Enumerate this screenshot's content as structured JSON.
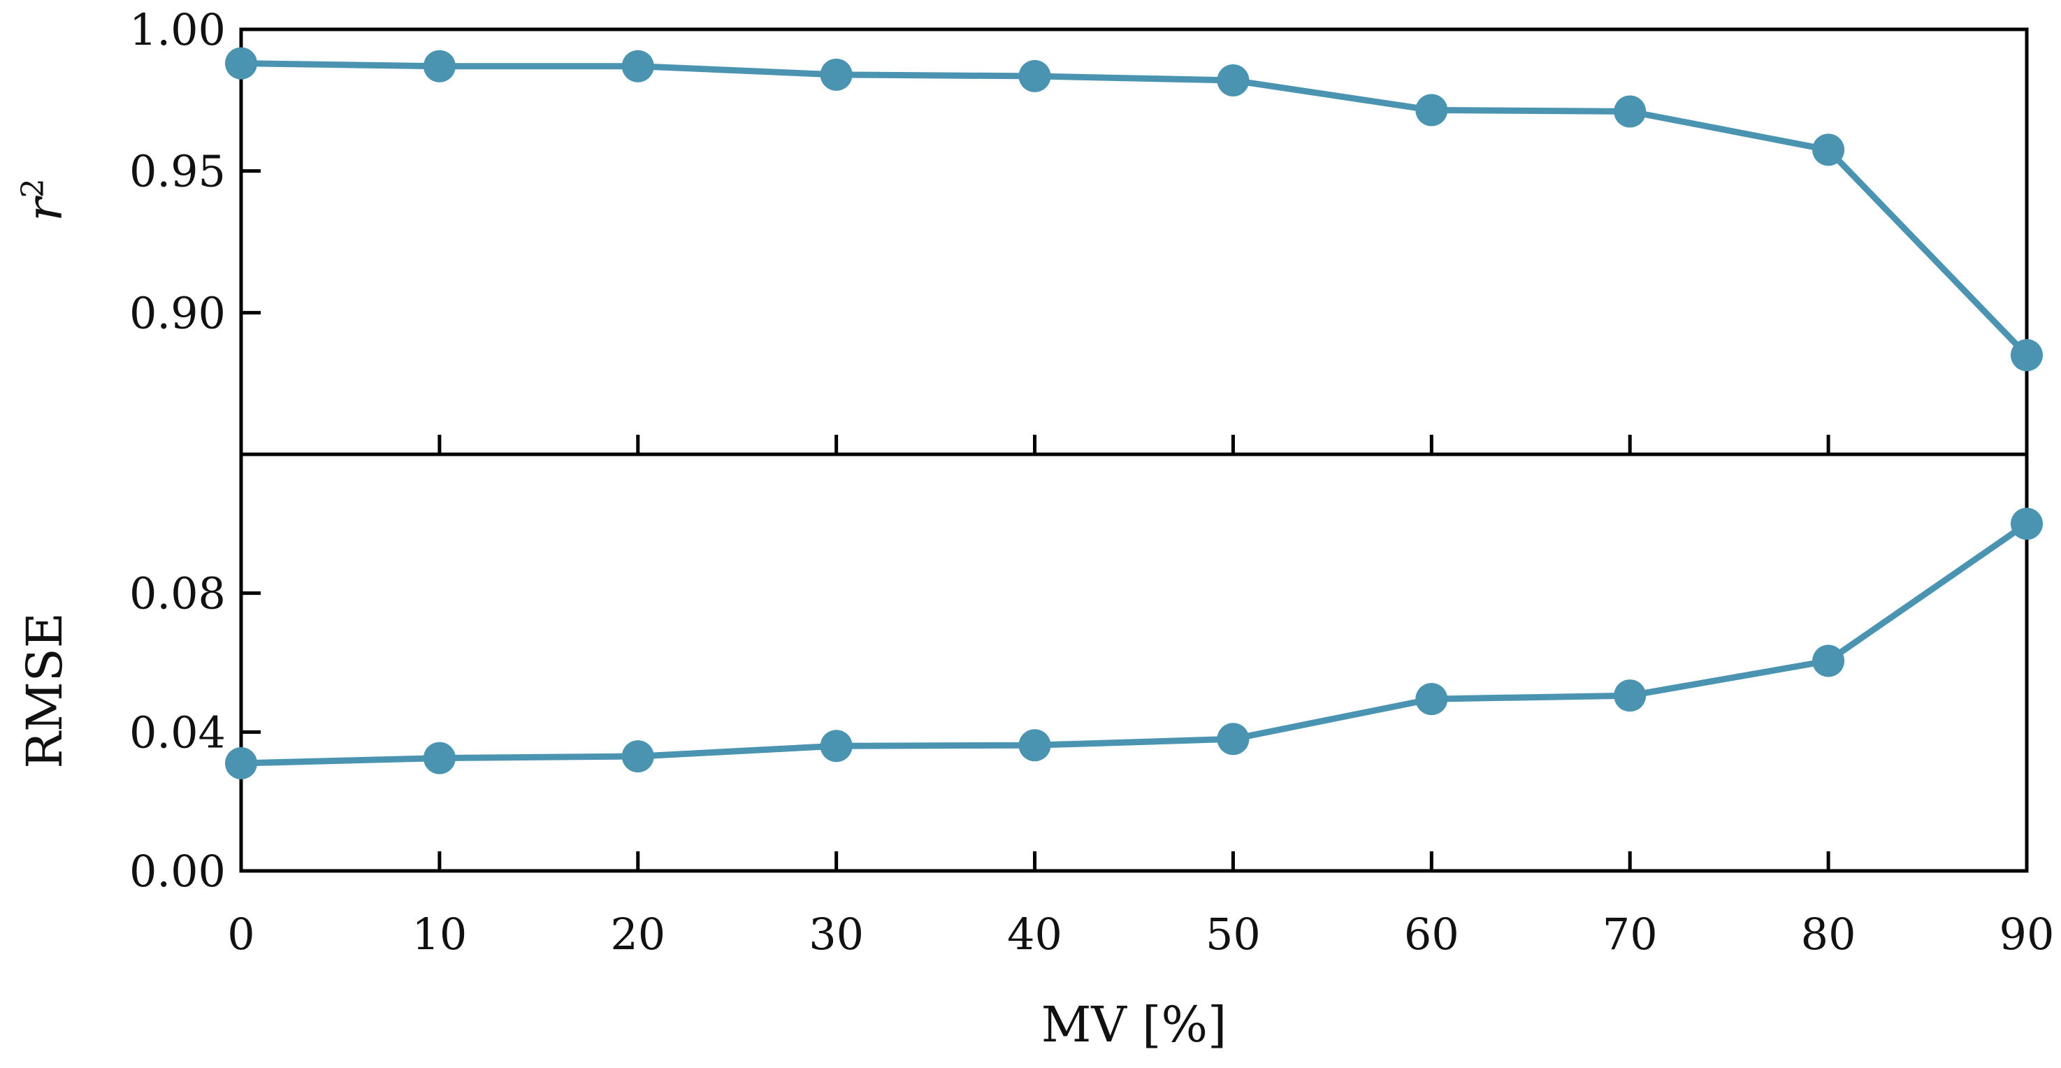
{
  "chart_data": [
    {
      "type": "line",
      "panel": "top",
      "ylabel_base": "r",
      "ylabel_sup": "2",
      "x": [
        0,
        10,
        20,
        30,
        40,
        50,
        60,
        70,
        80,
        90
      ],
      "series": [
        {
          "name": "r2",
          "values": [
            0.988,
            0.987,
            0.987,
            0.984,
            0.9835,
            0.982,
            0.9715,
            0.971,
            0.9575,
            0.885
          ]
        }
      ],
      "ylim": [
        0.85,
        1.0
      ],
      "yticks": [
        "1.00",
        "0.95",
        "0.90"
      ],
      "grid": false
    },
    {
      "type": "line",
      "panel": "bottom",
      "ylabel": "RMSE",
      "x": [
        0,
        10,
        20,
        30,
        40,
        50,
        60,
        70,
        80,
        90
      ],
      "series": [
        {
          "name": "RMSE",
          "values": [
            0.031,
            0.0325,
            0.033,
            0.036,
            0.0362,
            0.038,
            0.0495,
            0.0505,
            0.0605,
            0.1
          ]
        }
      ],
      "ylim": [
        0.0,
        0.12
      ],
      "yticks": [
        "0.08",
        "0.04",
        "0.00"
      ],
      "xlabel": "MV [%]",
      "xticks": [
        "0",
        "10",
        "20",
        "30",
        "40",
        "50",
        "60",
        "70",
        "80",
        "90"
      ],
      "grid": false
    }
  ],
  "colors": {
    "series": "#4a94b2",
    "axis": "#000000"
  }
}
